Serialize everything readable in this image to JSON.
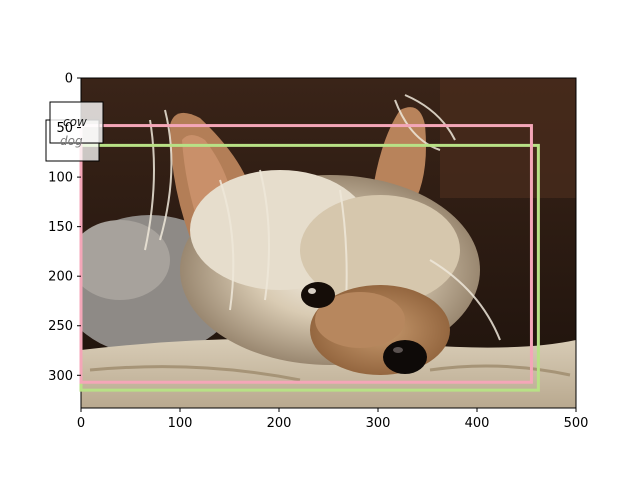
{
  "image": {
    "width": 500,
    "height": 333,
    "subject": "yorkshire terrier dog lying on a beige blanket"
  },
  "axes": {
    "x_ticks": [
      "0",
      "100",
      "200",
      "300",
      "400",
      "500"
    ],
    "y_ticks": [
      "0",
      "50",
      "100",
      "150",
      "200",
      "250",
      "300"
    ]
  },
  "detections": [
    {
      "label": "dog",
      "color": "#b8e186",
      "x1": 0,
      "y1": 68,
      "x2": 462,
      "y2": 315
    },
    {
      "label": "cow",
      "color": "#f4a6b8",
      "x1": 0,
      "y1": 48,
      "x2": 455,
      "y2": 307
    }
  ],
  "colors": {
    "frame": "#000000",
    "label_background": "#ffffff",
    "label_text": "#1a1a1a",
    "label_text_faded": "#7a7a7a"
  }
}
